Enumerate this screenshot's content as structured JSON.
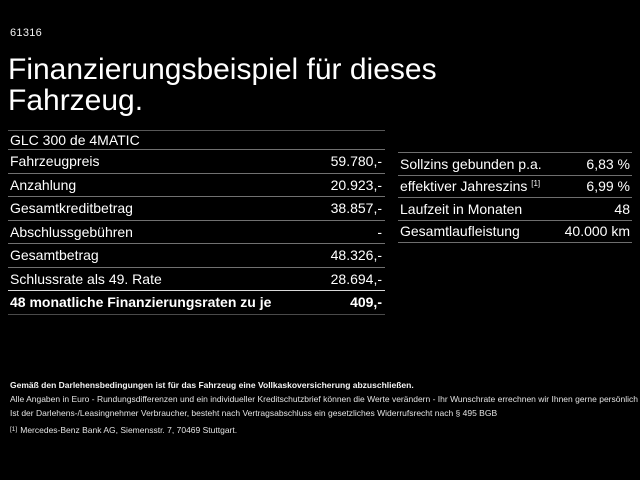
{
  "page": {
    "code": "61316",
    "title_line1": "Finanzierungsbeispiel für dieses",
    "title_line2": "Fahrzeug.",
    "vehicle": "GLC 300 de 4MATIC"
  },
  "finance_table": {
    "rows": [
      {
        "label": "Fahrzeugpreis",
        "value": "59.780,-"
      },
      {
        "label": "Anzahlung",
        "value": "20.923,-"
      },
      {
        "label": "Gesamtkreditbetrag",
        "value": "38.857,-"
      },
      {
        "label": "Abschlussgebühren",
        "value": "-"
      },
      {
        "label": "Gesamtbetrag",
        "value": "48.326,-"
      },
      {
        "label": "Schlussrate als 49. Rate",
        "value": "28.694,-"
      }
    ],
    "highlight_row": {
      "label": "48 monatliche Finanzierungsraten zu je",
      "value": "409,-"
    }
  },
  "conditions_table": {
    "rows": [
      {
        "label": "Sollzins gebunden p.a.",
        "sup": "",
        "value": "6,83 %"
      },
      {
        "label": "effektiver Jahreszins",
        "sup": "[1]",
        "value": "6,99 %"
      },
      {
        "label": "Laufzeit in Monaten",
        "sup": "",
        "value": "48"
      },
      {
        "label": "Gesamtlaufleistung",
        "sup": "",
        "value": "40.000 km"
      }
    ]
  },
  "footnotes": {
    "bold_note": "Gemäß den Darlehensbedingungen ist für das Fahrzeug eine Vollkaskoversicherung abzuschließen.",
    "note2": "Alle Angaben in Euro - Rundungsdifferenzen und ein individueller Kreditschutzbrief können die Werte verändern - Ihr Wunschrate errechnen wir Ihnen gerne persönlich",
    "note3": "Ist der Darlehens-/Leasingnehmer Verbraucher, besteht nach Vertragsabschluss ein gesetzliches Widerrufsrecht nach § 495 BGB",
    "source_sup": "[1]",
    "source": "Mercedes-Benz Bank AG, Siemensstr. 7, 70469 Stuttgart."
  },
  "colors": {
    "background": "#000000",
    "text": "#ffffff",
    "separator": "#707070",
    "separator_strong": "#d9d9d9",
    "separator_dim": "#4a4a4a"
  }
}
